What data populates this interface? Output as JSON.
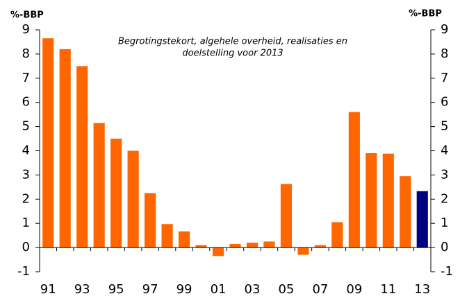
{
  "chart_data": {
    "type": "bar",
    "title": [
      "Begrotingstekort, algehele overheid, realisaties en",
      "doelstelling voor 2013"
    ],
    "ylabel": "%-BBP",
    "y2label": "%-BBP",
    "categories": [
      "91",
      null,
      "93",
      null,
      "95",
      null,
      "97",
      null,
      "99",
      null,
      "01",
      null,
      "03",
      null,
      "05",
      null,
      "07",
      null,
      "09",
      null,
      "11",
      null,
      "13"
    ],
    "values": [
      8.65,
      8.2,
      7.5,
      5.15,
      4.5,
      4.0,
      2.25,
      0.97,
      0.67,
      0.1,
      -0.35,
      0.15,
      0.2,
      0.25,
      2.63,
      -0.3,
      0.1,
      1.05,
      5.6,
      3.9,
      3.88,
      2.95,
      2.33
    ],
    "colors": [
      "#ff6600",
      "#ff6600",
      "#ff6600",
      "#ff6600",
      "#ff6600",
      "#ff6600",
      "#ff6600",
      "#ff6600",
      "#ff6600",
      "#ff6600",
      "#ff6600",
      "#ff6600",
      "#ff6600",
      "#ff6600",
      "#ff6600",
      "#ff6600",
      "#ff6600",
      "#ff6600",
      "#ff6600",
      "#ff6600",
      "#ff6600",
      "#ff6600",
      "#000080"
    ],
    "ylim": [
      -1,
      9
    ],
    "yticks": [
      -1,
      0,
      1,
      2,
      3,
      4,
      5,
      6,
      7,
      8,
      9
    ],
    "y2lim": [
      -1,
      9
    ],
    "y2ticks": [
      -1,
      0,
      1,
      2,
      3,
      4,
      5,
      6,
      7,
      8,
      9
    ]
  }
}
